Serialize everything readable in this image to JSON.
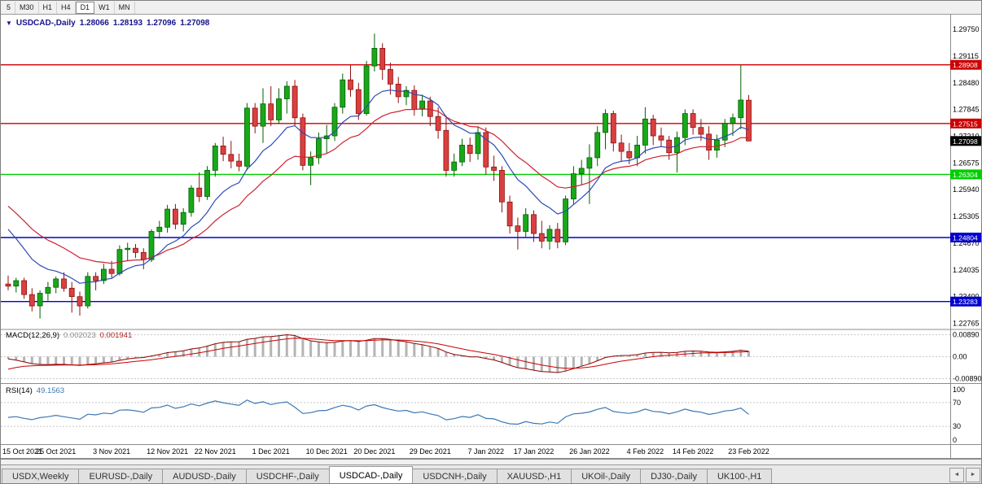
{
  "toolbar": {
    "timeframes": [
      "5",
      "M30",
      "H1",
      "H4",
      "D1",
      "W1",
      "MN"
    ],
    "active": "D1"
  },
  "icons": {
    "chart_dropdown": "▼",
    "scroll_left": "◄",
    "scroll_right": "►"
  },
  "chart": {
    "title": {
      "symbol": "USDCAD-,Daily",
      "open": "1.28066",
      "high": "1.28193",
      "low": "1.27096",
      "close": "1.27098"
    },
    "price_axis": {
      "labels": [
        "1.29750",
        "1.29115",
        "1.28480",
        "1.27845",
        "1.27210",
        "1.26575",
        "1.25940",
        "1.25305",
        "1.24670",
        "1.24035",
        "1.23400",
        "1.22765"
      ]
    },
    "current_price": {
      "text": "1.27098",
      "price": 1.27098,
      "color": "#000000"
    }
  },
  "macd": {
    "label": "MACD(12,26,9)",
    "macd_value": "0.002023",
    "signal_value": "0.001941",
    "axis": [
      "0.00890",
      "0.00",
      "-0.00890"
    ]
  },
  "rsi": {
    "label": "RSI(14)",
    "value": "49.1563",
    "axis": [
      "100",
      "70",
      "30",
      "0"
    ],
    "levels": [
      70,
      30
    ]
  },
  "tabs": {
    "items": [
      {
        "label": "USDX,Weekly"
      },
      {
        "label": "EURUSD-,Daily"
      },
      {
        "label": "AUDUSD-,Daily"
      },
      {
        "label": "USDCHF-,Daily"
      },
      {
        "label": "USDCAD-,Daily"
      },
      {
        "label": "USDCNH-,Daily"
      },
      {
        "label": "XAUUSD-,H1"
      },
      {
        "label": "UKOil-,Daily"
      },
      {
        "label": "DJ30-,Daily"
      },
      {
        "label": "UK100-,H1"
      }
    ],
    "active_index": 4
  },
  "chart_data": {
    "type": "candlestick",
    "symbol": "USDCAD-",
    "timeframe": "Daily",
    "y_range": [
      1.2264,
      1.301
    ],
    "hlines": [
      {
        "text": "1.28908",
        "price": 1.28908,
        "color": "#cc0000"
      },
      {
        "text": "1.27515",
        "price": 1.27515,
        "color": "#cc0000"
      },
      {
        "text": "1.26304",
        "price": 1.26304,
        "color": "#00cc00"
      },
      {
        "text": "1.24804",
        "price": 1.24804,
        "color": "#0000cc"
      },
      {
        "text": "1.23283",
        "price": 1.23283,
        "color": "#0000cc"
      }
    ],
    "colors": {
      "bull": "#18a818",
      "bull_border": "#045f04",
      "bear": "#d94040",
      "bear_border": "#8f0f0f",
      "ma_fast": "#2b4bb5",
      "ma_slow": "#cc2233",
      "macd_line": "#8b0000",
      "macd_signal": "#cc0000",
      "histogram": "#b4b4b4",
      "rsi": "#3c78b4"
    },
    "x_ticks": [
      {
        "index": 0,
        "label": "15 Oct 2021"
      },
      {
        "index": 6,
        "label": "25 Oct 2021"
      },
      {
        "index": 13,
        "label": "3 Nov 2021"
      },
      {
        "index": 20,
        "label": "12 Nov 2021"
      },
      {
        "index": 26,
        "label": "22 Nov 2021"
      },
      {
        "index": 33,
        "label": "1 Dec 2021"
      },
      {
        "index": 40,
        "label": "10 Dec 2021"
      },
      {
        "index": 46,
        "label": "20 Dec 2021"
      },
      {
        "index": 53,
        "label": "29 Dec 2021"
      },
      {
        "index": 60,
        "label": "7 Jan 2022"
      },
      {
        "index": 66,
        "label": "17 Jan 2022"
      },
      {
        "index": 73,
        "label": "26 Jan 2022"
      },
      {
        "index": 80,
        "label": "4 Feb 2022"
      },
      {
        "index": 86,
        "label": "14 Feb 2022"
      },
      {
        "index": 93,
        "label": "23 Feb 2022"
      }
    ],
    "dates": [
      "2021-10-15",
      "2021-10-18",
      "2021-10-19",
      "2021-10-20",
      "2021-10-21",
      "2021-10-22",
      "2021-10-25",
      "2021-10-26",
      "2021-10-27",
      "2021-10-28",
      "2021-10-29",
      "2021-11-01",
      "2021-11-02",
      "2021-11-03",
      "2021-11-04",
      "2021-11-05",
      "2021-11-08",
      "2021-11-09",
      "2021-11-10",
      "2021-11-11",
      "2021-11-12",
      "2021-11-15",
      "2021-11-16",
      "2021-11-17",
      "2021-11-18",
      "2021-11-19",
      "2021-11-22",
      "2021-11-23",
      "2021-11-24",
      "2021-11-25",
      "2021-11-26",
      "2021-11-29",
      "2021-11-30",
      "2021-12-01",
      "2021-12-02",
      "2021-12-03",
      "2021-12-06",
      "2021-12-07",
      "2021-12-08",
      "2021-12-09",
      "2021-12-10",
      "2021-12-13",
      "2021-12-14",
      "2021-12-15",
      "2021-12-16",
      "2021-12-17",
      "2021-12-20",
      "2021-12-21",
      "2021-12-22",
      "2021-12-23",
      "2021-12-24",
      "2021-12-27",
      "2021-12-28",
      "2021-12-29",
      "2021-12-30",
      "2021-12-31",
      "2022-01-03",
      "2022-01-04",
      "2022-01-05",
      "2022-01-06",
      "2022-01-07",
      "2022-01-10",
      "2022-01-11",
      "2022-01-12",
      "2022-01-13",
      "2022-01-14",
      "2022-01-17",
      "2022-01-18",
      "2022-01-19",
      "2022-01-20",
      "2022-01-21",
      "2022-01-24",
      "2022-01-25",
      "2022-01-26",
      "2022-01-27",
      "2022-01-28",
      "2022-01-31",
      "2022-02-01",
      "2022-02-02",
      "2022-02-03",
      "2022-02-04",
      "2022-02-07",
      "2022-02-08",
      "2022-02-09",
      "2022-02-10",
      "2022-02-11",
      "2022-02-14",
      "2022-02-15",
      "2022-02-16",
      "2022-02-17",
      "2022-02-18",
      "2022-02-21",
      "2022-02-22",
      "2022-02-23"
    ],
    "ohlc": [
      [
        1.237,
        1.239,
        1.2355,
        1.2365
      ],
      [
        1.2365,
        1.2385,
        1.235,
        1.2378
      ],
      [
        1.2378,
        1.2385,
        1.2335,
        1.2345
      ],
      [
        1.2345,
        1.236,
        1.2305,
        1.2318
      ],
      [
        1.2318,
        1.2355,
        1.2288,
        1.2348
      ],
      [
        1.2348,
        1.2375,
        1.233,
        1.2362
      ],
      [
        1.2362,
        1.2388,
        1.2348,
        1.2382
      ],
      [
        1.2382,
        1.2398,
        1.2352,
        1.236
      ],
      [
        1.236,
        1.2375,
        1.2302,
        1.234
      ],
      [
        1.234,
        1.2352,
        1.2295,
        1.2318
      ],
      [
        1.2318,
        1.2398,
        1.2312,
        1.2388
      ],
      [
        1.2388,
        1.2398,
        1.2355,
        1.2378
      ],
      [
        1.2378,
        1.2418,
        1.237,
        1.2405
      ],
      [
        1.2405,
        1.2425,
        1.2385,
        1.2395
      ],
      [
        1.2395,
        1.2462,
        1.239,
        1.2452
      ],
      [
        1.2452,
        1.2468,
        1.2425,
        1.2455
      ],
      [
        1.2455,
        1.2465,
        1.2432,
        1.2445
      ],
      [
        1.2445,
        1.2455,
        1.2405,
        1.2428
      ],
      [
        1.2428,
        1.25,
        1.2422,
        1.2495
      ],
      [
        1.2495,
        1.252,
        1.2478,
        1.2505
      ],
      [
        1.2505,
        1.2558,
        1.2492,
        1.2548
      ],
      [
        1.2548,
        1.256,
        1.25,
        1.2512
      ],
      [
        1.2512,
        1.255,
        1.2495,
        1.254
      ],
      [
        1.254,
        1.2605,
        1.253,
        1.2598
      ],
      [
        1.2598,
        1.2635,
        1.2565,
        1.2578
      ],
      [
        1.2578,
        1.265,
        1.257,
        1.264
      ],
      [
        1.264,
        1.2705,
        1.2625,
        1.2698
      ],
      [
        1.2698,
        1.272,
        1.2662,
        1.2678
      ],
      [
        1.2678,
        1.271,
        1.2645,
        1.2662
      ],
      [
        1.2662,
        1.268,
        1.2638,
        1.265
      ],
      [
        1.265,
        1.28,
        1.264,
        1.2788
      ],
      [
        1.2788,
        1.28,
        1.2728,
        1.2745
      ],
      [
        1.2745,
        1.2835,
        1.2705,
        1.2798
      ],
      [
        1.2798,
        1.284,
        1.2745,
        1.276
      ],
      [
        1.276,
        1.2835,
        1.275,
        1.281
      ],
      [
        1.281,
        1.2852,
        1.2775,
        1.284
      ],
      [
        1.284,
        1.2855,
        1.2745,
        1.2765
      ],
      [
        1.2765,
        1.2775,
        1.264,
        1.2652
      ],
      [
        1.2652,
        1.2685,
        1.2605,
        1.267
      ],
      [
        1.267,
        1.273,
        1.2655,
        1.2715
      ],
      [
        1.2715,
        1.2748,
        1.268,
        1.2722
      ],
      [
        1.2722,
        1.28,
        1.271,
        1.279
      ],
      [
        1.279,
        1.287,
        1.2775,
        1.2855
      ],
      [
        1.2855,
        1.289,
        1.2815,
        1.2832
      ],
      [
        1.2832,
        1.2848,
        1.276,
        1.2775
      ],
      [
        1.2775,
        1.29,
        1.277,
        1.2888
      ],
      [
        1.2888,
        1.2965,
        1.2875,
        1.293
      ],
      [
        1.293,
        1.2942,
        1.2855,
        1.288
      ],
      [
        1.288,
        1.2896,
        1.282,
        1.2845
      ],
      [
        1.2845,
        1.2862,
        1.28,
        1.2815
      ],
      [
        1.2815,
        1.284,
        1.2795,
        1.283
      ],
      [
        1.283,
        1.2842,
        1.277,
        1.2785
      ],
      [
        1.2785,
        1.282,
        1.2768,
        1.2805
      ],
      [
        1.2805,
        1.2815,
        1.2745,
        1.2768
      ],
      [
        1.2768,
        1.279,
        1.2715,
        1.2735
      ],
      [
        1.2735,
        1.277,
        1.2625,
        1.264
      ],
      [
        1.264,
        1.268,
        1.2625,
        1.266
      ],
      [
        1.266,
        1.2715,
        1.265,
        1.27
      ],
      [
        1.27,
        1.2718,
        1.266,
        1.268
      ],
      [
        1.268,
        1.2745,
        1.2665,
        1.273
      ],
      [
        1.273,
        1.2742,
        1.263,
        1.2648
      ],
      [
        1.2648,
        1.2675,
        1.2615,
        1.264
      ],
      [
        1.264,
        1.265,
        1.254,
        1.2565
      ],
      [
        1.2565,
        1.258,
        1.249,
        1.2508
      ],
      [
        1.2508,
        1.2528,
        1.2452,
        1.2495
      ],
      [
        1.2495,
        1.255,
        1.248,
        1.2535
      ],
      [
        1.2535,
        1.2545,
        1.247,
        1.249
      ],
      [
        1.249,
        1.252,
        1.2455,
        1.2472
      ],
      [
        1.2472,
        1.251,
        1.2452,
        1.25
      ],
      [
        1.25,
        1.2515,
        1.2455,
        1.247
      ],
      [
        1.247,
        1.258,
        1.2462,
        1.2572
      ],
      [
        1.2572,
        1.265,
        1.256,
        1.2632
      ],
      [
        1.2632,
        1.2665,
        1.2605,
        1.2645
      ],
      [
        1.2645,
        1.2702,
        1.256,
        1.267
      ],
      [
        1.267,
        1.2745,
        1.265,
        1.273
      ],
      [
        1.273,
        1.2785,
        1.269,
        1.2775
      ],
      [
        1.2775,
        1.2782,
        1.2685,
        1.2705
      ],
      [
        1.2705,
        1.2725,
        1.266,
        1.2685
      ],
      [
        1.2685,
        1.2705,
        1.2655,
        1.267
      ],
      [
        1.267,
        1.2722,
        1.265,
        1.27
      ],
      [
        1.27,
        1.279,
        1.268,
        1.2762
      ],
      [
        1.2762,
        1.2772,
        1.27,
        1.2722
      ],
      [
        1.2722,
        1.2742,
        1.2695,
        1.2712
      ],
      [
        1.2712,
        1.2722,
        1.2665,
        1.2682
      ],
      [
        1.2682,
        1.2732,
        1.2635,
        1.2718
      ],
      [
        1.2718,
        1.2785,
        1.27,
        1.2775
      ],
      [
        1.2775,
        1.2785,
        1.2725,
        1.2742
      ],
      [
        1.2742,
        1.2762,
        1.271,
        1.2726
      ],
      [
        1.2726,
        1.2745,
        1.2665,
        1.2688
      ],
      [
        1.2688,
        1.2725,
        1.267,
        1.2712
      ],
      [
        1.2712,
        1.2762,
        1.2695,
        1.2752
      ],
      [
        1.2752,
        1.2775,
        1.2722,
        1.2765
      ],
      [
        1.2765,
        1.289,
        1.2738,
        1.2807
      ],
      [
        1.28066,
        1.28193,
        1.27096,
        1.27098
      ]
    ]
  }
}
